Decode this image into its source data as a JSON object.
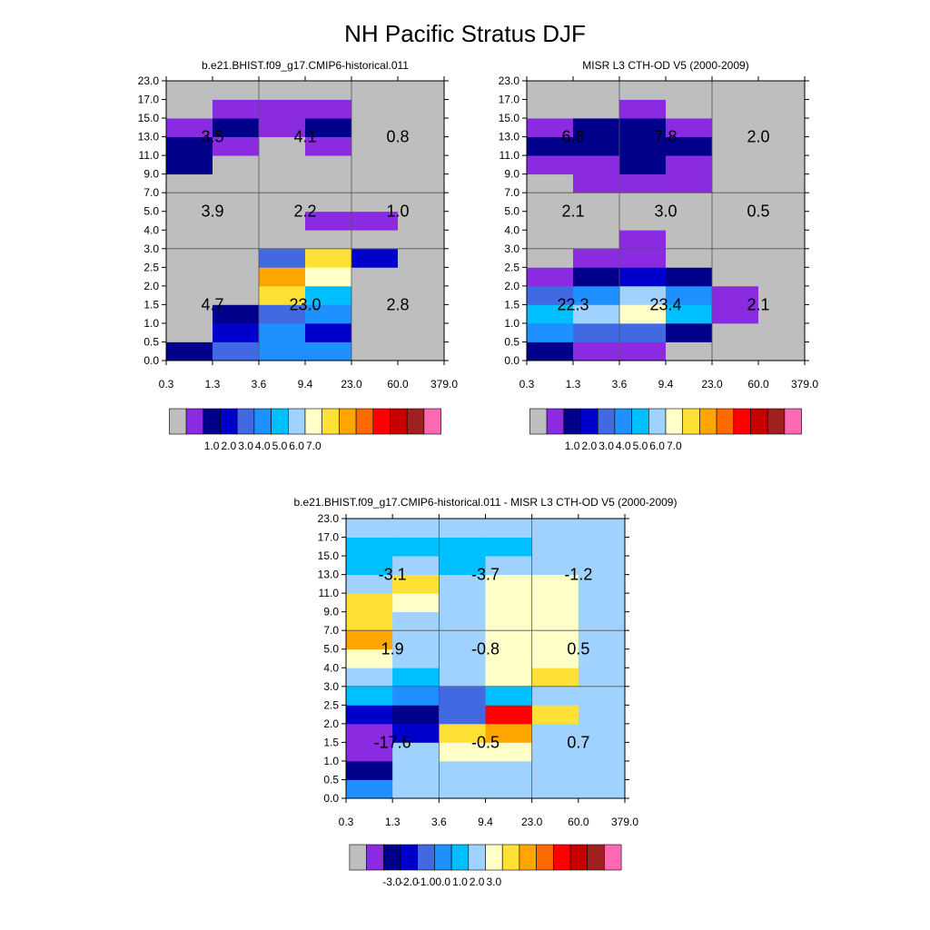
{
  "page_title": "NH Pacific Stratus DJF",
  "colors": {
    "scale": [
      "#bebebe",
      "#8a2be2",
      "#00008b",
      "#0000cd",
      "#4169e1",
      "#1e90ff",
      "#00bfff",
      "#a0d2ff",
      "#ffffc8",
      "#ffe135",
      "#ffa500",
      "#ff6a00",
      "#ff0000",
      "#c80000",
      "#a02020",
      "#ff69b4"
    ],
    "grid_line": "#555555"
  },
  "chart_data": [
    {
      "type": "heatmap",
      "title": "b.e21.BHIST.f09_g17.CMIP6-historical.011",
      "x_ticks": [
        "0.3",
        "1.3",
        "3.6",
        "9.4",
        "23.0",
        "60.0",
        "379.0"
      ],
      "y_ticks": [
        "0.0",
        "0.5",
        "1.0",
        "1.5",
        "2.0",
        "2.5",
        "3.0",
        "4.0",
        "5.0",
        "7.0",
        "9.0",
        "11.0",
        "13.0",
        "15.0",
        "17.0",
        "23.0"
      ],
      "cell_class": [
        [
          2,
          4,
          5,
          5,
          0,
          0
        ],
        [
          0,
          3,
          5,
          3,
          0,
          0
        ],
        [
          0,
          2,
          4,
          5,
          0,
          0
        ],
        [
          0,
          0,
          9,
          6,
          0,
          0
        ],
        [
          0,
          0,
          10,
          8,
          0,
          0
        ],
        [
          0,
          0,
          4,
          9,
          3,
          0
        ],
        [
          0,
          0,
          0,
          0,
          0,
          0
        ],
        [
          0,
          0,
          0,
          1,
          1,
          0
        ],
        [
          0,
          0,
          0,
          0,
          0,
          0
        ],
        [
          0,
          0,
          0,
          0,
          0,
          0
        ],
        [
          2,
          0,
          0,
          0,
          0,
          0
        ],
        [
          2,
          1,
          0,
          1,
          0,
          0
        ],
        [
          1,
          2,
          1,
          2,
          0,
          0
        ],
        [
          0,
          1,
          1,
          1,
          0,
          0
        ],
        [
          0,
          0,
          0,
          0,
          0,
          0
        ],
        [
          0,
          0,
          0,
          0,
          0,
          0
        ]
      ],
      "labels": [
        {
          "text": "3.5",
          "x": 1.0,
          "y": 12.0
        },
        {
          "text": "4.1",
          "x": 3.0,
          "y": 12.0
        },
        {
          "text": "0.8",
          "x": 5.0,
          "y": 12.0
        },
        {
          "text": "3.9",
          "x": 1.0,
          "y": 8.0
        },
        {
          "text": "2.2",
          "x": 3.0,
          "y": 8.0
        },
        {
          "text": "1.0",
          "x": 5.0,
          "y": 8.0
        },
        {
          "text": "4.7",
          "x": 1.0,
          "y": 3.0
        },
        {
          "text": "23.0",
          "x": 3.0,
          "y": 3.0
        },
        {
          "text": "2.8",
          "x": 5.0,
          "y": 3.0
        }
      ],
      "colorbar_labels": [
        "1.0",
        "2.0",
        "3.0",
        "4.0",
        "5.0",
        "6.0",
        "7.0"
      ]
    },
    {
      "type": "heatmap",
      "title": "MISR L3 CTH-OD V5 (2000-2009)",
      "x_ticks": [
        "0.3",
        "1.3",
        "3.6",
        "9.4",
        "23.0",
        "60.0",
        "379.0"
      ],
      "y_ticks": [
        "0.0",
        "0.5",
        "1.0",
        "1.5",
        "2.0",
        "2.5",
        "3.0",
        "4.0",
        "5.0",
        "7.0",
        "9.0",
        "11.0",
        "13.0",
        "15.0",
        "17.0",
        "23.0"
      ],
      "cell_class": [
        [
          2,
          1,
          1,
          0,
          0,
          0
        ],
        [
          5,
          4,
          4,
          2,
          0,
          0
        ],
        [
          6,
          7,
          8,
          6,
          1,
          0
        ],
        [
          4,
          5,
          7,
          5,
          1,
          0
        ],
        [
          1,
          2,
          3,
          2,
          0,
          0
        ],
        [
          0,
          1,
          1,
          0,
          0,
          0
        ],
        [
          0,
          0,
          1,
          0,
          0,
          0
        ],
        [
          0,
          0,
          0,
          0,
          0,
          0
        ],
        [
          0,
          0,
          0,
          0,
          0,
          0
        ],
        [
          0,
          1,
          1,
          1,
          0,
          0
        ],
        [
          1,
          1,
          2,
          1,
          0,
          0
        ],
        [
          2,
          2,
          2,
          2,
          0,
          0
        ],
        [
          1,
          2,
          2,
          1,
          0,
          0
        ],
        [
          0,
          0,
          1,
          0,
          0,
          0
        ],
        [
          0,
          0,
          0,
          0,
          0,
          0
        ],
        [
          0,
          0,
          0,
          0,
          0,
          0
        ]
      ],
      "labels": [
        {
          "text": "6.6",
          "x": 1.0,
          "y": 12.0
        },
        {
          "text": "7.8",
          "x": 3.0,
          "y": 12.0
        },
        {
          "text": "2.0",
          "x": 5.0,
          "y": 12.0
        },
        {
          "text": "2.1",
          "x": 1.0,
          "y": 8.0
        },
        {
          "text": "3.0",
          "x": 3.0,
          "y": 8.0
        },
        {
          "text": "0.5",
          "x": 5.0,
          "y": 8.0
        },
        {
          "text": "22.3",
          "x": 1.0,
          "y": 3.0
        },
        {
          "text": "23.4",
          "x": 3.0,
          "y": 3.0
        },
        {
          "text": "2.1",
          "x": 5.0,
          "y": 3.0
        }
      ],
      "colorbar_labels": [
        "1.0",
        "2.0",
        "3.0",
        "4.0",
        "5.0",
        "6.0",
        "7.0"
      ]
    },
    {
      "type": "heatmap",
      "title": "b.e21.BHIST.f09_g17.CMIP6-historical.011 - MISR L3 CTH-OD V5 (2000-2009)",
      "x_ticks": [
        "0.3",
        "1.3",
        "3.6",
        "9.4",
        "23.0",
        "60.0",
        "379.0"
      ],
      "y_ticks": [
        "0.0",
        "0.5",
        "1.0",
        "1.5",
        "2.0",
        "2.5",
        "3.0",
        "4.0",
        "5.0",
        "7.0",
        "9.0",
        "11.0",
        "13.0",
        "15.0",
        "17.0",
        "23.0"
      ],
      "cell_class": [
        [
          5,
          7,
          7,
          7,
          7,
          7
        ],
        [
          2,
          7,
          7,
          7,
          7,
          7
        ],
        [
          1,
          7,
          8,
          8,
          7,
          7
        ],
        [
          1,
          3,
          9,
          10,
          7,
          7
        ],
        [
          3,
          2,
          4,
          12,
          9,
          7
        ],
        [
          6,
          5,
          4,
          6,
          7,
          7
        ],
        [
          7,
          6,
          7,
          8,
          9,
          7
        ],
        [
          8,
          7,
          7,
          8,
          8,
          7
        ],
        [
          10,
          7,
          7,
          8,
          8,
          7
        ],
        [
          9,
          7,
          7,
          8,
          8,
          7
        ],
        [
          9,
          8,
          7,
          8,
          8,
          7
        ],
        [
          7,
          9,
          7,
          8,
          8,
          7
        ],
        [
          6,
          7,
          6,
          7,
          7,
          7
        ],
        [
          6,
          6,
          6,
          6,
          7,
          7
        ],
        [
          7,
          7,
          7,
          7,
          7,
          7
        ],
        [
          7,
          7,
          7,
          7,
          7,
          7
        ]
      ],
      "labels": [
        {
          "text": "-3.1",
          "x": 1.0,
          "y": 12.0
        },
        {
          "text": "-3.7",
          "x": 3.0,
          "y": 12.0
        },
        {
          "text": "-1.2",
          "x": 5.0,
          "y": 12.0
        },
        {
          "text": "1.9",
          "x": 1.0,
          "y": 8.0
        },
        {
          "text": "-0.8",
          "x": 3.0,
          "y": 8.0
        },
        {
          "text": "0.5",
          "x": 5.0,
          "y": 8.0
        },
        {
          "text": "-17.6",
          "x": 1.0,
          "y": 3.0
        },
        {
          "text": "-0.5",
          "x": 3.0,
          "y": 3.0
        },
        {
          "text": "0.7",
          "x": 5.0,
          "y": 3.0
        }
      ],
      "colorbar_labels": [
        "-3.0",
        "-2.0",
        "-1.0",
        "0.0",
        "1.0",
        "2.0",
        "3.0"
      ]
    }
  ]
}
